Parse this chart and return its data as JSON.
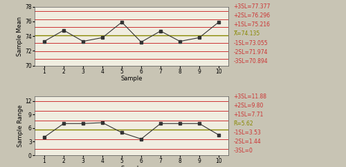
{
  "xbar_data": [
    73.3,
    74.8,
    73.3,
    73.8,
    75.9,
    73.2,
    74.7,
    73.3,
    73.8,
    75.9
  ],
  "range_data": [
    4.0,
    7.0,
    7.0,
    7.2,
    5.0,
    3.6,
    7.0,
    7.0,
    7.0,
    4.5
  ],
  "xbar_lines": {
    "+3SL": 77.377,
    "+2SL": 76.296,
    "+1SL": 75.216,
    "Xbar": 74.135,
    "-1SL": 73.055,
    "-2SL": 71.974,
    "-3SL": 70.894
  },
  "range_lines": {
    "+3SL": 11.88,
    "+2SL": 9.8,
    "+1SL": 7.71,
    "Rbar": 5.62,
    "-1SL": 3.53,
    "-2SL": 1.44,
    "-3SL": 0
  },
  "xbar_labels": [
    "+3SL=77.377",
    "+2SL=76.296",
    "+1SL=75.216",
    "X=74.135",
    "-1SL=73.055",
    "-2SL=71.974",
    "-3SL=70.894"
  ],
  "range_labels": [
    "+3SL=11.88",
    "+2SL=9.80",
    "+1SL=7.71",
    "R=5.62",
    "-1SL=3.53",
    "-2SL=1.44",
    "-3SL=0"
  ],
  "xbar_label_special": [
    false,
    false,
    false,
    true,
    false,
    false,
    false
  ],
  "xbar_ylim": [
    70,
    78
  ],
  "range_ylim": [
    0,
    13
  ],
  "xlabel": "Sample",
  "xbar_ylabel": "Sample Mean",
  "range_ylabel": "Sample Range",
  "samples": [
    1,
    2,
    3,
    4,
    5,
    6,
    7,
    8,
    9,
    10
  ],
  "bg_color": "#c8c4b4",
  "plot_bg": "#f0ede0",
  "line_color_center": "#888800",
  "line_color_sigma": "#cc3333",
  "line_color_outer": "#cc3333",
  "data_line_color": "#333333",
  "data_marker": "s",
  "data_marker_size": 3,
  "font_size_label": 6,
  "font_size_tick": 5.5,
  "font_size_legend": 5.5,
  "xbar_yticks": [
    70,
    72,
    74,
    76,
    78
  ],
  "range_yticks": [
    0,
    3,
    6,
    9,
    12
  ]
}
